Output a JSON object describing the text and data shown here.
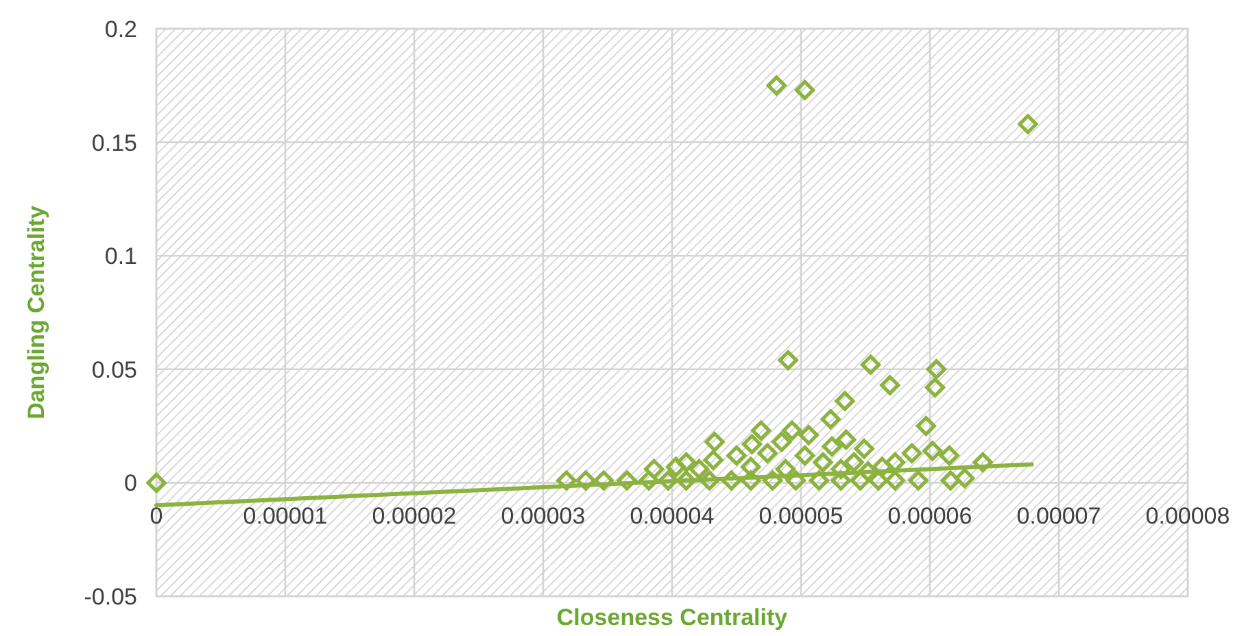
{
  "chart_data": {
    "type": "scatter",
    "xlabel": "Closeness Centrality",
    "ylabel": "Dangling Centrality",
    "xlim": [
      0,
      8e-05
    ],
    "ylim": [
      -0.05,
      0.2
    ],
    "xticks": [
      0,
      {
        "value": 1e-05,
        "label": "0.00001"
      },
      {
        "value": 2e-05,
        "label": "0.00002"
      },
      {
        "value": 3e-05,
        "label": "0.00003"
      },
      {
        "value": 4e-05,
        "label": "0.00004"
      },
      {
        "value": 5e-05,
        "label": "0.00005"
      },
      {
        "value": 6e-05,
        "label": "0.00006"
      },
      {
        "value": 7e-05,
        "label": "0.00007"
      },
      {
        "value": 8e-05,
        "label": "0.00008"
      }
    ],
    "yticks": [
      -0.05,
      0,
      0.05,
      0.1,
      0.15,
      0.2
    ],
    "grid": true,
    "marker": "diamond",
    "series": [
      {
        "color": "#8cb23f",
        "x": [
          0,
          4.81e-05,
          5.03e-05,
          6.76e-05,
          4.9e-05,
          5.54e-05,
          5.69e-05,
          6.05e-05,
          6.04e-05,
          5.97e-05,
          5.34e-05,
          5.23e-05,
          4.69e-05,
          4.93e-05,
          5.06e-05,
          4.33e-05,
          4.62e-05,
          4.85e-05,
          5.35e-05,
          5.24e-05,
          5.49e-05,
          5.86e-05,
          6.02e-05,
          6.15e-05,
          6.41e-05,
          6.27e-05,
          6.16e-05,
          4.11e-05,
          4.32e-05,
          4.5e-05,
          4.74e-05,
          5.03e-05,
          5.17e-05,
          5.41e-05,
          5.63e-05,
          5.73e-05,
          3.18e-05,
          3.33e-05,
          3.47e-05,
          3.65e-05,
          3.82e-05,
          3.97e-05,
          4.11e-05,
          4.29e-05,
          4.46e-05,
          4.61e-05,
          4.78e-05,
          4.96e-05,
          5.14e-05,
          5.31e-05,
          5.46e-05,
          5.6e-05,
          5.73e-05,
          5.91e-05,
          3.86e-05,
          4.03e-05,
          4.21e-05,
          4.61e-05,
          4.88e-05,
          5.31e-05,
          5.52e-05
        ],
        "values": [
          0,
          0.175,
          0.173,
          0.158,
          0.054,
          0.052,
          0.043,
          0.05,
          0.042,
          0.025,
          0.036,
          0.028,
          0.023,
          0.023,
          0.021,
          0.018,
          0.017,
          0.018,
          0.019,
          0.016,
          0.015,
          0.013,
          0.014,
          0.012,
          0.009,
          0.002,
          0.001,
          0.009,
          0.01,
          0.012,
          0.013,
          0.012,
          0.009,
          0.009,
          0.007,
          0.009,
          0.001,
          0.001,
          0.001,
          0.001,
          0.001,
          0.001,
          0.001,
          0.001,
          0.001,
          0.001,
          0.001,
          0.001,
          0.001,
          0.001,
          0.001,
          0.001,
          0.001,
          0.001,
          0.006,
          0.007,
          0.006,
          0.007,
          0.006,
          0.006,
          0.005
        ]
      },
      {
        "type": "line",
        "color": "#8cb23f",
        "x": [
          0,
          6.79e-05
        ],
        "values": [
          -0.0099,
          0.0081
        ],
        "marker": "none",
        "line_style": "solid"
      }
    ]
  }
}
